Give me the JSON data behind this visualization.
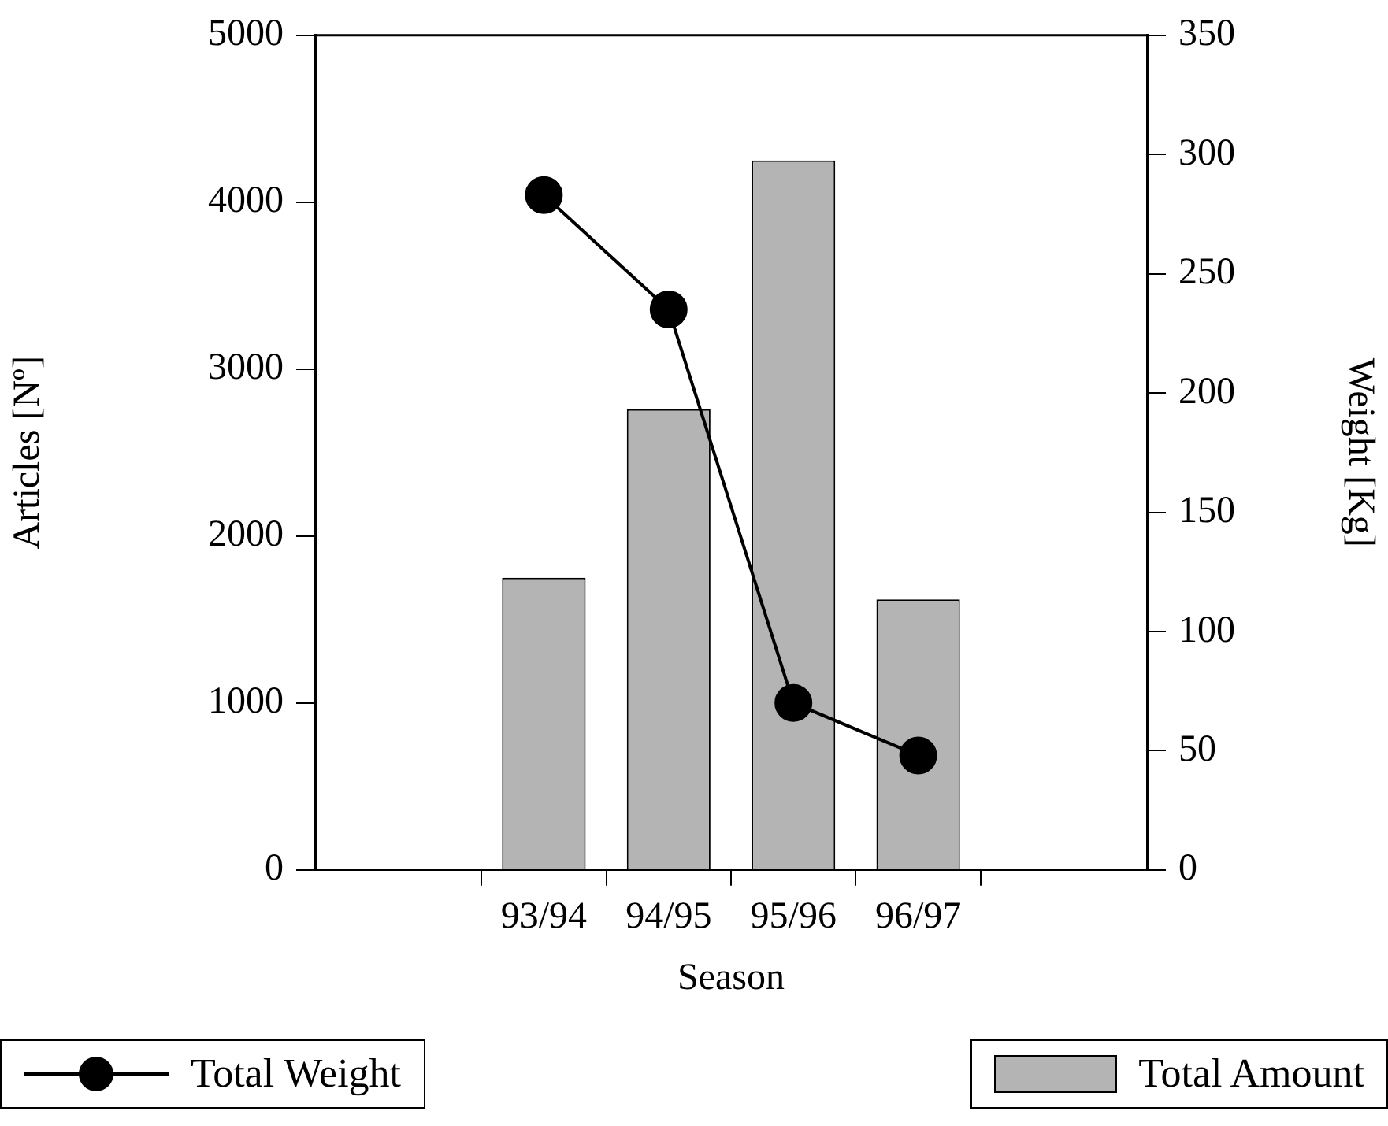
{
  "chart_data": {
    "type": "bar",
    "xlabel": "Season",
    "ylabel": "Articles [Nº]",
    "y2label": "Weight [Kg]",
    "categories": [
      "93/94",
      "94/95",
      "95/96",
      "96/97"
    ],
    "series": [
      {
        "name": "Total Amount",
        "color": "#b4b4b4",
        "values": [
          1750,
          2760,
          4250,
          1620
        ]
      },
      {
        "name": "Total Weight",
        "type": "line",
        "axis": "y2",
        "color": "#000000",
        "marker": "circle",
        "values": [
          283,
          235,
          70,
          48
        ]
      }
    ],
    "ylim": [
      0,
      5000
    ],
    "yticks": [
      0,
      1000,
      2000,
      3000,
      4000,
      5000
    ],
    "y2lim": [
      0,
      350
    ],
    "y2ticks": [
      0,
      50,
      100,
      150,
      200,
      250,
      300,
      350
    ],
    "grid": false,
    "legend": "bottom"
  }
}
